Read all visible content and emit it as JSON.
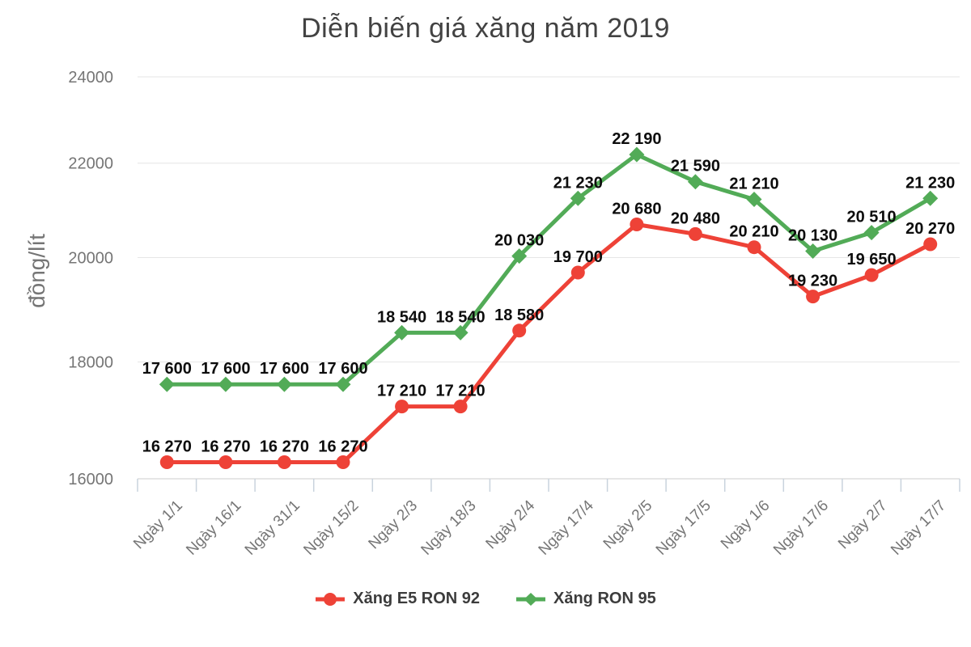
{
  "title": "Diễn biến giá xăng năm 2019",
  "y_axis_label": "đồng/lít",
  "chart_data": {
    "type": "line",
    "title": "Diễn biến giá xăng năm 2019",
    "ylabel": "đồng/lít",
    "xlabel": "",
    "x_categories": [
      "Ngày 1/1",
      "Ngày 16/1",
      "Ngày 31/1",
      "Ngày 15/2",
      "Ngày 2/3",
      "Ngày 18/3",
      "Ngày 2/4",
      "Ngày 17/4",
      "Ngày 2/5",
      "Ngày 17/5",
      "Ngày 1/6",
      "Ngày 17/6",
      "Ngày 2/7",
      "Ngày 17/7"
    ],
    "series": [
      {
        "name": "Xăng E5 RON 92",
        "color": "#ee4237",
        "marker": "circle",
        "values": [
          16270,
          16270,
          16270,
          16270,
          17210,
          17210,
          18580,
          19700,
          20680,
          20480,
          20210,
          19230,
          19650,
          20270
        ]
      },
      {
        "name": "Xăng RON 95",
        "color": "#52ab57",
        "marker": "diamond",
        "values": [
          17600,
          17600,
          17600,
          17600,
          18540,
          18540,
          20030,
          21230,
          22190,
          21590,
          21210,
          20130,
          20510,
          21230
        ]
      }
    ],
    "y_axis": {
      "scale": "log",
      "min": 16000,
      "max": 24000,
      "ticks": [
        16000,
        18000,
        20000,
        22000,
        24000
      ]
    },
    "grid": true,
    "legend_position": "bottom",
    "data_labels": true,
    "data_label_thousands_separator": " "
  },
  "colors": {
    "series_e5_ron92": "#ee4237",
    "series_ron95": "#52ab57",
    "grid_line": "#e6e6e6",
    "axis_line": "#cccccc",
    "tick_mark": "#c9d3dd",
    "tick_label": "#757575",
    "data_label": "#0d0d0d",
    "title": "#424242",
    "legend_label": "#3c3c3c"
  }
}
